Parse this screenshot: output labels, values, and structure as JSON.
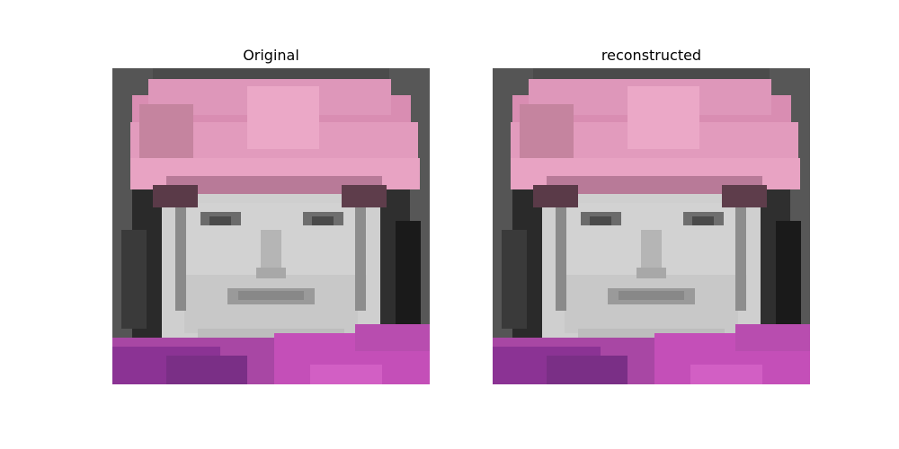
{
  "figure": {
    "panels": [
      {
        "id": "original",
        "title": "Original"
      },
      {
        "id": "reconstructed",
        "title": "reconstructed"
      }
    ]
  },
  "image_description_colors": {
    "background_gray": "#4b4b4b",
    "hat_pink": "#e29bbd",
    "hat_pink_light": "#eba8c7",
    "hat_shadow": "#b87a98",
    "face_light": "#d9d9d9",
    "face_mid": "#bdbdbd",
    "hair_dark": "#1e1e1e",
    "shirt_purple": "#9b3b9a",
    "shirt_magenta": "#c44fb8"
  }
}
